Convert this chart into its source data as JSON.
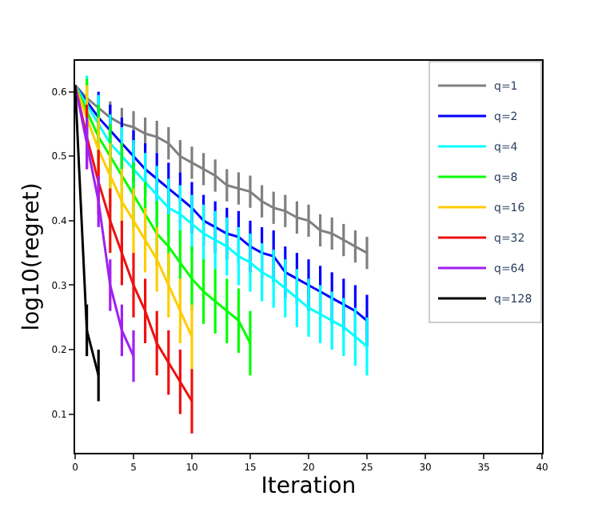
{
  "chart_data": {
    "type": "line",
    "xlabel": "Iteration",
    "ylabel": "log10(regret)",
    "xlim": [
      0,
      40
    ],
    "xticks": [
      0,
      5,
      10,
      15,
      20,
      25,
      30,
      35,
      40
    ],
    "ylim": [
      0.04,
      0.648
    ],
    "yticks": [
      0.1,
      0.2,
      0.3,
      0.4,
      0.5,
      0.6
    ],
    "legend": "top right",
    "line_style": "solid",
    "marker": "none",
    "series": [
      {
        "name": "q=1",
        "color": "#808080",
        "x": [
          0,
          1,
          2,
          3,
          4,
          5,
          6,
          7,
          8,
          9,
          10,
          11,
          12,
          13,
          14,
          15,
          16,
          17,
          18,
          19,
          20,
          21,
          22,
          23,
          24,
          25
        ],
        "values": [
          0.61,
          0.59,
          0.575,
          0.56,
          0.55,
          0.545,
          0.535,
          0.53,
          0.52,
          0.5,
          0.49,
          0.48,
          0.47,
          0.455,
          0.45,
          0.445,
          0.43,
          0.42,
          0.415,
          0.405,
          0.4,
          0.385,
          0.38,
          0.37,
          0.36,
          0.35
        ],
        "errors": [
          null,
          null,
          null,
          0.025,
          0.025,
          0.025,
          0.025,
          0.025,
          0.025,
          0.025,
          0.025,
          0.025,
          0.025,
          0.025,
          0.025,
          0.025,
          0.025,
          0.025,
          0.025,
          0.025,
          0.025,
          0.025,
          0.025,
          0.025,
          0.025,
          0.025
        ]
      },
      {
        "name": "q=2",
        "color": "#0000ff",
        "x": [
          0,
          1,
          2,
          3,
          4,
          5,
          6,
          7,
          8,
          9,
          10,
          11,
          12,
          13,
          14,
          15,
          16,
          17,
          18,
          19,
          20,
          21,
          22,
          23,
          24,
          25
        ],
        "values": [
          0.61,
          0.585,
          0.56,
          0.54,
          0.52,
          0.5,
          0.48,
          0.465,
          0.45,
          0.435,
          0.42,
          0.4,
          0.39,
          0.38,
          0.375,
          0.36,
          0.35,
          0.345,
          0.32,
          0.31,
          0.3,
          0.29,
          0.28,
          0.27,
          0.26,
          0.245
        ],
        "errors": [
          null,
          null,
          0.04,
          0.04,
          0.04,
          0.04,
          0.04,
          0.04,
          0.04,
          0.04,
          0.04,
          0.04,
          0.04,
          0.04,
          0.04,
          0.04,
          0.04,
          0.04,
          0.04,
          0.04,
          0.04,
          0.04,
          0.04,
          0.04,
          0.04,
          0.04
        ]
      },
      {
        "name": "q=4",
        "color": "#00ffff",
        "x": [
          0,
          1,
          2,
          3,
          4,
          5,
          6,
          7,
          8,
          9,
          10,
          11,
          12,
          13,
          14,
          15,
          16,
          17,
          18,
          19,
          20,
          21,
          22,
          23,
          24,
          25
        ],
        "values": [
          0.61,
          0.58,
          0.55,
          0.52,
          0.5,
          0.48,
          0.46,
          0.44,
          0.42,
          0.41,
          0.395,
          0.38,
          0.37,
          0.36,
          0.345,
          0.335,
          0.32,
          0.31,
          0.295,
          0.28,
          0.265,
          0.255,
          0.245,
          0.235,
          0.22,
          0.205
        ],
        "errors": [
          null,
          0.045,
          0.045,
          0.045,
          0.045,
          0.045,
          0.045,
          0.045,
          0.045,
          0.045,
          0.045,
          0.045,
          0.045,
          0.045,
          0.045,
          0.045,
          0.045,
          0.045,
          0.045,
          0.045,
          0.045,
          0.045,
          0.045,
          0.045,
          0.045,
          0.045
        ]
      },
      {
        "name": "q=8",
        "color": "#00ff00",
        "x": [
          0,
          1,
          2,
          3,
          4,
          5,
          6,
          7,
          8,
          9,
          10,
          11,
          12,
          13,
          14,
          15
        ],
        "values": [
          0.61,
          0.57,
          0.53,
          0.5,
          0.47,
          0.44,
          0.41,
          0.38,
          0.36,
          0.335,
          0.31,
          0.29,
          0.275,
          0.26,
          0.245,
          0.21
        ],
        "errors": [
          null,
          0.05,
          0.05,
          0.05,
          0.05,
          0.05,
          0.05,
          0.05,
          0.05,
          0.05,
          0.05,
          0.05,
          0.05,
          0.05,
          0.05,
          0.05
        ]
      },
      {
        "name": "q=16",
        "color": "#ffcc00",
        "x": [
          0,
          1,
          2,
          3,
          4,
          5,
          6,
          7,
          8,
          9,
          10
        ],
        "values": [
          0.61,
          0.56,
          0.51,
          0.47,
          0.43,
          0.4,
          0.37,
          0.34,
          0.3,
          0.26,
          0.22
        ],
        "errors": [
          null,
          0.05,
          0.05,
          0.05,
          0.05,
          0.05,
          0.05,
          0.05,
          0.05,
          0.05,
          0.05
        ]
      },
      {
        "name": "q=32",
        "color": "#ee1111",
        "x": [
          0,
          1,
          2,
          3,
          4,
          5,
          6,
          7,
          8,
          9,
          10
        ],
        "values": [
          0.61,
          0.53,
          0.46,
          0.4,
          0.35,
          0.3,
          0.26,
          0.21,
          0.18,
          0.15,
          0.12
        ],
        "errors": [
          null,
          0.05,
          0.05,
          0.05,
          0.05,
          0.05,
          0.05,
          0.05,
          0.05,
          0.05,
          0.05
        ]
      },
      {
        "name": "q=64",
        "color": "#a020f0",
        "x": [
          0,
          1,
          2,
          3,
          4,
          5
        ],
        "values": [
          0.61,
          0.52,
          0.43,
          0.3,
          0.23,
          0.19
        ],
        "errors": [
          null,
          0.04,
          0.04,
          0.04,
          0.04,
          0.04
        ]
      },
      {
        "name": "q=128",
        "color": "#000000",
        "x": [
          0,
          1,
          2
        ],
        "values": [
          0.61,
          0.23,
          0.16
        ],
        "errors": [
          null,
          0.04,
          0.04
        ]
      }
    ]
  }
}
